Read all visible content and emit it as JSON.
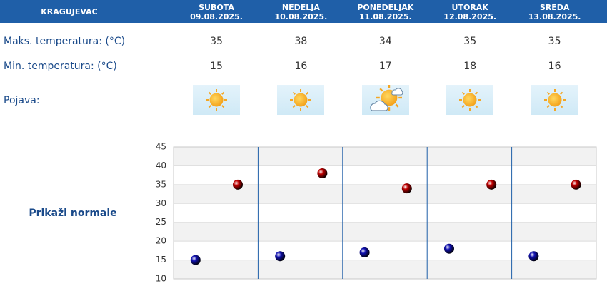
{
  "table": {
    "city": "KRAGUJEVAC",
    "days": [
      {
        "name": "SUBOTA",
        "date": "09.08.2025."
      },
      {
        "name": "NEDELJA",
        "date": "10.08.2025."
      },
      {
        "name": "PONEDELJAK",
        "date": "11.08.2025."
      },
      {
        "name": "UTORAK",
        "date": "12.08.2025."
      },
      {
        "name": "SREDA",
        "date": "13.08.2025."
      }
    ],
    "rows": [
      {
        "label": "Maks. temperatura: (°C)",
        "values": [
          35,
          38,
          34,
          35,
          35
        ]
      },
      {
        "label": "Min. temperatura: (°C)",
        "values": [
          15,
          16,
          17,
          18,
          16
        ]
      }
    ],
    "phenomenon_label": "Pojava:"
  },
  "link": "Prikaži normale",
  "chart_data": {
    "type": "dot",
    "ylim": [
      10,
      45
    ],
    "yticks": [
      10,
      15,
      20,
      25,
      30,
      35,
      40,
      45
    ],
    "grid": true,
    "series": [
      {
        "color": "#c00000"
      },
      {
        "color": "#1010b0"
      }
    ]
  }
}
